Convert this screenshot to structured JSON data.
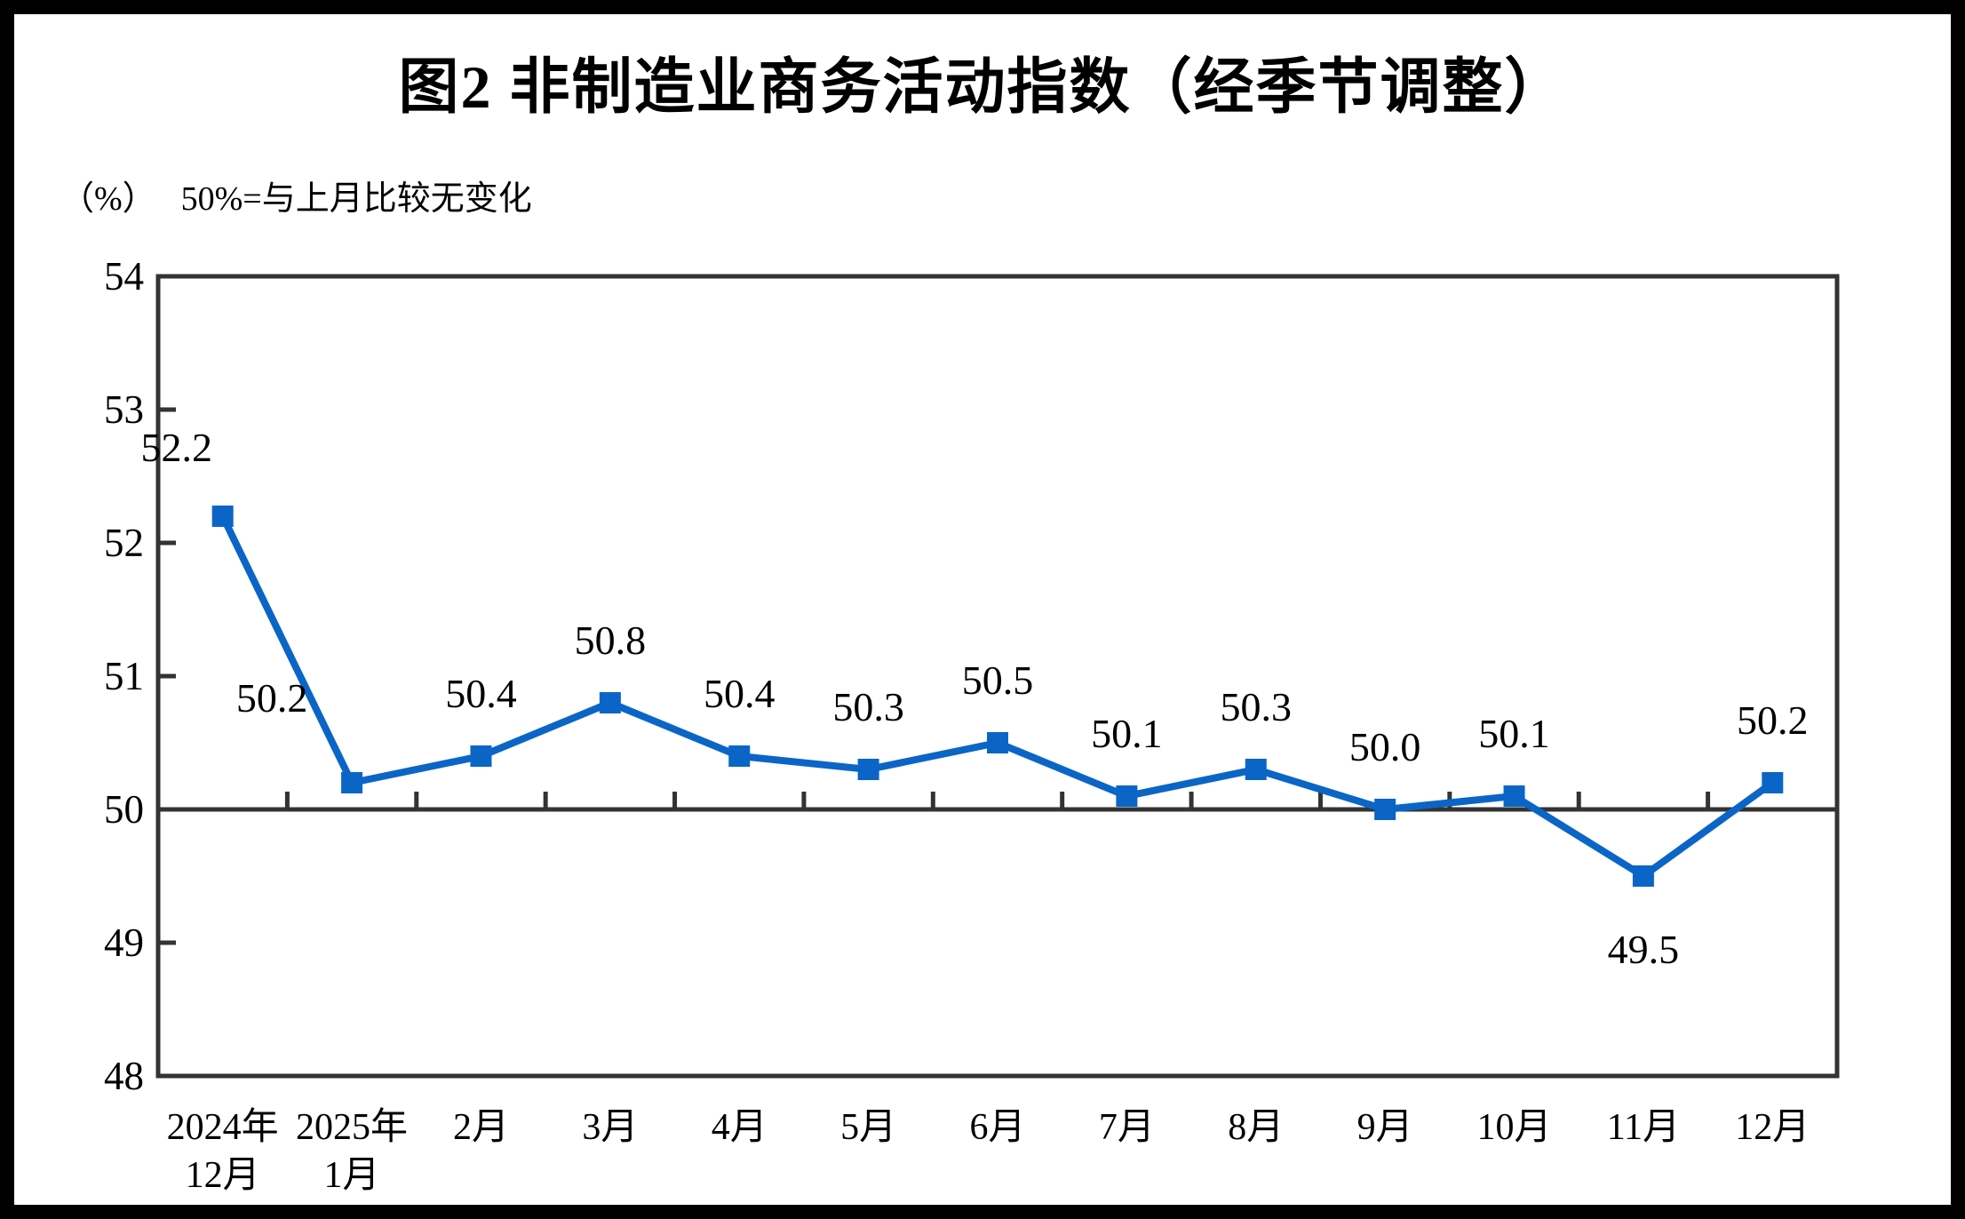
{
  "title": "图2 非制造业商务活动指数（经季节调整）",
  "unit_label": "（%）",
  "baseline_note": "50%=与上月比较无变化",
  "colors": {
    "series": "#0B65C6",
    "axis": "#333333",
    "text": "#000000"
  },
  "chart_data": {
    "type": "line",
    "title": "图2 非制造业商务活动指数（经季节调整）",
    "ylabel": "（%）",
    "annotation": "50%=与上月比较无变化",
    "categories": [
      [
        "2024年",
        "12月"
      ],
      [
        "2025年",
        "1月"
      ],
      [
        "2月"
      ],
      [
        "3月"
      ],
      [
        "4月"
      ],
      [
        "5月"
      ],
      [
        "6月"
      ],
      [
        "7月"
      ],
      [
        "8月"
      ],
      [
        "9月"
      ],
      [
        "10月"
      ],
      [
        "11月"
      ],
      [
        "12月"
      ]
    ],
    "values": [
      52.2,
      50.2,
      50.4,
      50.8,
      50.4,
      50.3,
      50.5,
      50.1,
      50.3,
      50.0,
      50.1,
      49.5,
      50.2
    ],
    "point_labels": [
      "52.2",
      "50.2",
      "50.4",
      "50.8",
      "50.4",
      "50.3",
      "50.5",
      "50.1",
      "50.3",
      "50.0",
      "50.1",
      "49.5",
      "50.2"
    ],
    "ylim": [
      48,
      54
    ],
    "yticks": [
      54,
      53,
      52,
      51,
      50,
      49,
      48
    ],
    "baseline": 50,
    "grid": "off",
    "legend": "none",
    "marker": "square"
  }
}
